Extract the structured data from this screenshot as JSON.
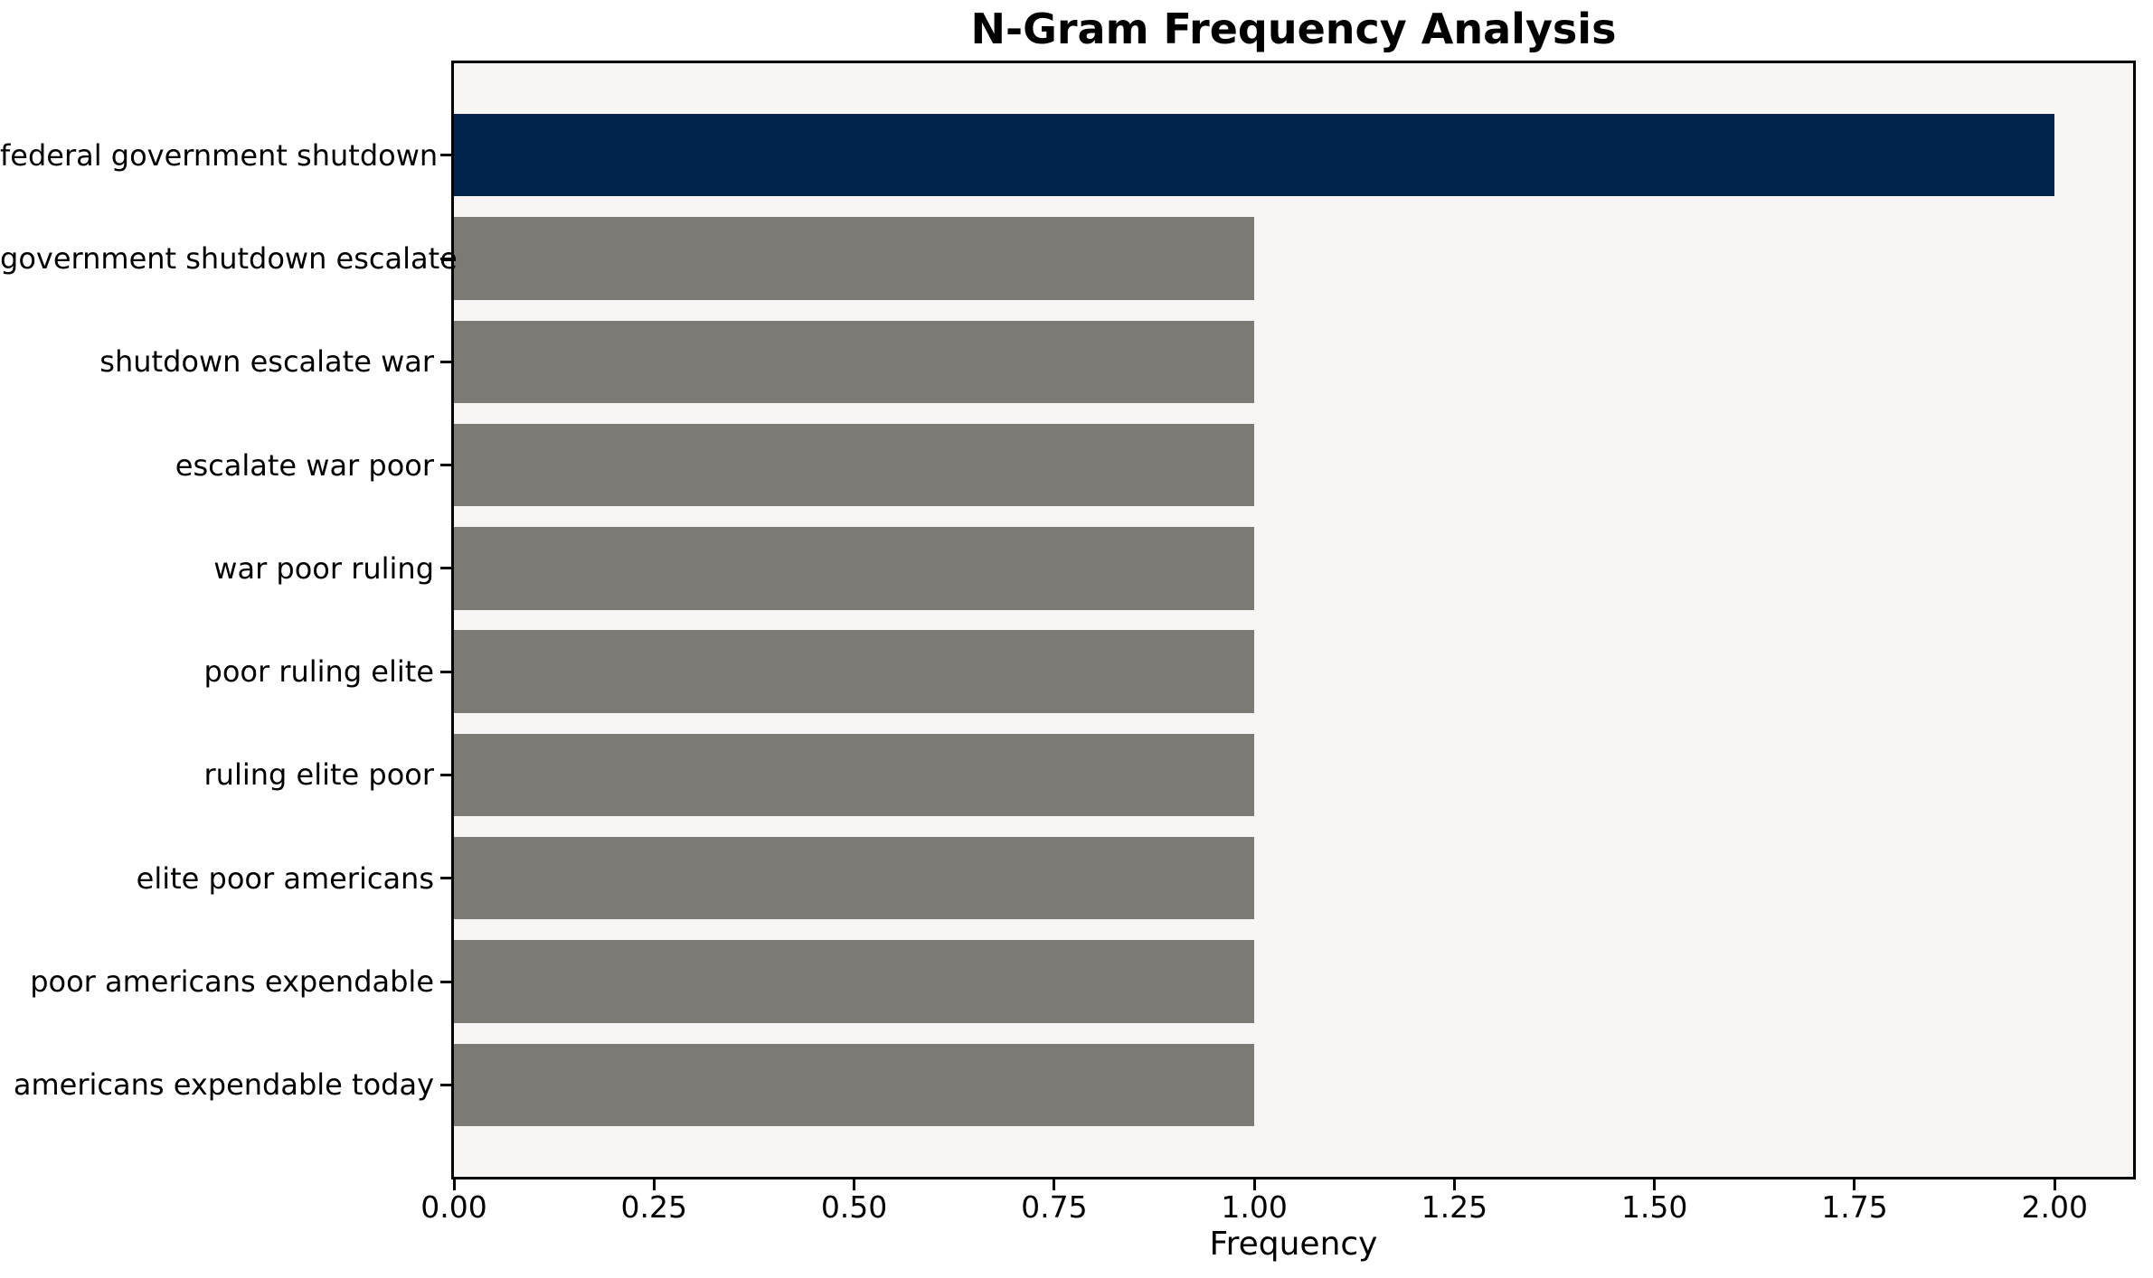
{
  "chart_data": {
    "type": "bar",
    "orientation": "horizontal",
    "title": "N-Gram Frequency Analysis",
    "xlabel": "Frequency",
    "ylabel": "",
    "categories": [
      "federal government shutdown",
      "government shutdown escalate",
      "shutdown escalate war",
      "escalate war poor",
      "war poor ruling",
      "poor ruling elite",
      "ruling elite poor",
      "elite poor americans",
      "poor americans expendable",
      "americans expendable today"
    ],
    "values": [
      2.0,
      1.0,
      1.0,
      1.0,
      1.0,
      1.0,
      1.0,
      1.0,
      1.0,
      1.0
    ],
    "bar_colors": [
      "#02234C",
      "#7B7A75",
      "#7B7A75",
      "#7B7A75",
      "#7B7A75",
      "#7B7A75",
      "#7B7A75",
      "#7B7A75",
      "#7B7A75",
      "#7B7A75"
    ],
    "xticks": [
      "0.00",
      "0.25",
      "0.50",
      "0.75",
      "1.00",
      "1.25",
      "1.50",
      "1.75",
      "2.00"
    ],
    "xtick_values": [
      0,
      0.25,
      0.5,
      0.75,
      1.0,
      1.25,
      1.5,
      1.75,
      2.0
    ],
    "xlim": [
      0,
      2.098
    ],
    "grid": false,
    "legend": "none",
    "colors": {
      "highlight_bar": "#02234C",
      "default_bar": "#7B7A75",
      "axes_background": "#F7F6F5",
      "figure_background": "#FFFFFF",
      "spine": "#000000",
      "text": "#000000"
    }
  }
}
